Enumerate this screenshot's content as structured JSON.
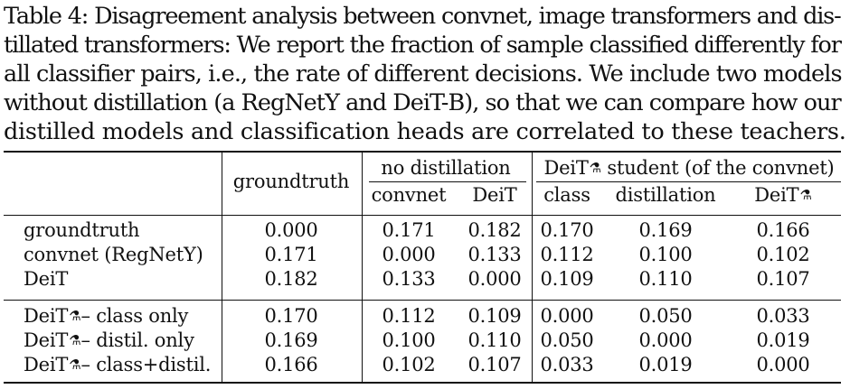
{
  "caption": {
    "lines": [
      "Table 4: Disagreement analysis between convnet, image transformers and dis-",
      "tillated transformers: We report the fraction of sample classified differently for",
      "all classifier pairs, i.e., the rate of different decisions.  We include two models",
      "without distillation (a RegNetY and DeiT-B), so that we can compare how our",
      "distilled models and classification heads are correlated to these teachers."
    ]
  },
  "header": {
    "groundtruth": "groundtruth",
    "no_distillation": "no distillation",
    "deit_student_prefix": "DeiT",
    "deit_student_suffix": " student (of the convnet)",
    "convnet": "convnet",
    "deit": "DeiT",
    "class": "class",
    "distillation": "distillation",
    "deit_hat": "DeiT",
    "hat_symbol": "⚗"
  },
  "rows": [
    {
      "label": "groundtruth",
      "hat": "",
      "label_suffix": "",
      "values": [
        "0.000",
        "0.171",
        "0.182",
        "0.170",
        "0.169",
        "0.166"
      ]
    },
    {
      "label": "convnet (RegNetY)",
      "hat": "",
      "label_suffix": "",
      "values": [
        "0.171",
        "0.000",
        "0.133",
        "0.112",
        "0.100",
        "0.102"
      ]
    },
    {
      "label": "DeiT",
      "hat": "",
      "label_suffix": "",
      "values": [
        "0.182",
        "0.133",
        "0.000",
        "0.109",
        "0.110",
        "0.107"
      ]
    },
    {
      "label": "DeiT",
      "hat": "⚗",
      "label_suffix": "– class only",
      "values": [
        "0.170",
        "0.112",
        "0.109",
        "0.000",
        "0.050",
        "0.033"
      ]
    },
    {
      "label": "DeiT",
      "hat": "⚗",
      "label_suffix": "– distil. only",
      "values": [
        "0.169",
        "0.100",
        "0.110",
        "0.050",
        "0.000",
        "0.019"
      ]
    },
    {
      "label": "DeiT",
      "hat": "⚗",
      "label_suffix": "– class+distil.",
      "values": [
        "0.166",
        "0.102",
        "0.107",
        "0.033",
        "0.019",
        "0.000"
      ]
    }
  ]
}
